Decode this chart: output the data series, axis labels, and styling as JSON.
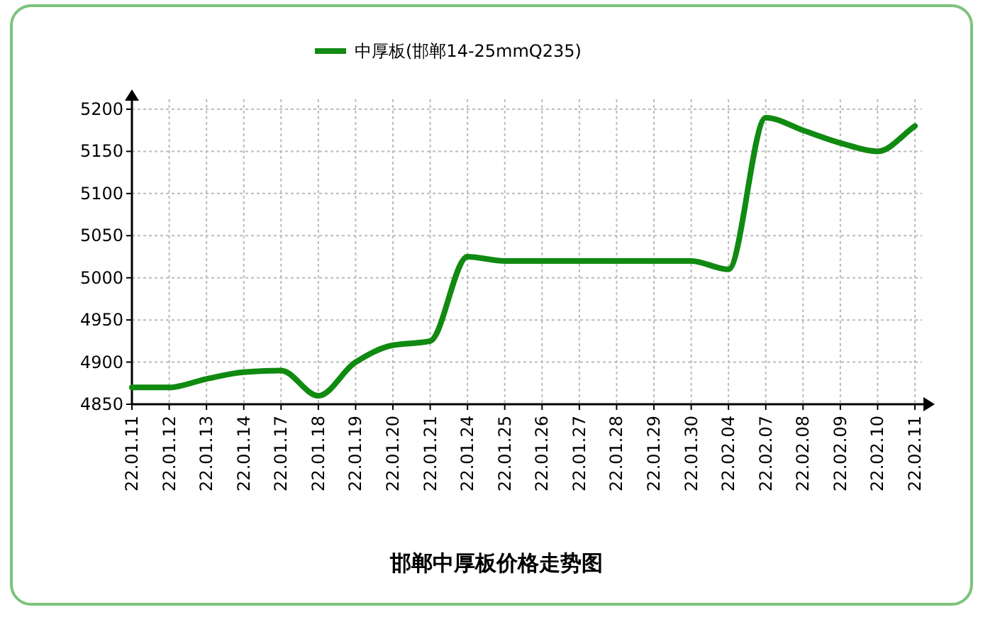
{
  "chart_data": {
    "type": "line",
    "title": "邯郸中厚板价格走势图",
    "categories": [
      "22.01.11",
      "22.01.12",
      "22.01.13",
      "22.01.14",
      "22.01.17",
      "22.01.18",
      "22.01.19",
      "22.01.20",
      "22.01.21",
      "22.01.24",
      "22.01.25",
      "22.01.26",
      "22.01.27",
      "22.01.28",
      "22.01.29",
      "22.01.30",
      "22.02.04",
      "22.02.07",
      "22.02.08",
      "22.02.09",
      "22.02.10",
      "22.02.11"
    ],
    "series": [
      {
        "name": "中厚板(邯郸14-25mmQ235)",
        "color": "#108a10",
        "values": [
          4870,
          4870,
          4880,
          4888,
          4890,
          4860,
          4900,
          4920,
          4925,
          5025,
          5020,
          5020,
          5020,
          5020,
          5020,
          5020,
          5010,
          5190,
          5175,
          5160,
          5150,
          5180
        ]
      }
    ],
    "ylim": [
      4850,
      5200
    ],
    "yticks": [
      4850,
      4900,
      4950,
      5000,
      5050,
      5100,
      5150,
      5200
    ],
    "grid": true,
    "legend": "top",
    "marker": "none",
    "line_style": "solid"
  }
}
